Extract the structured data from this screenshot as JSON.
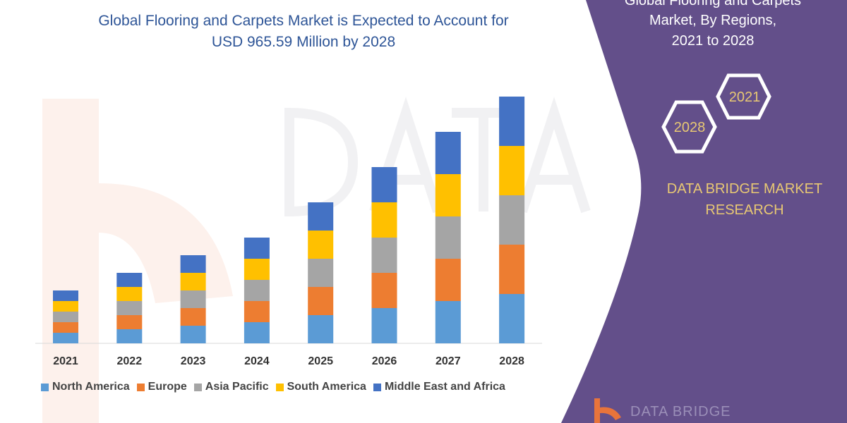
{
  "header": {
    "line1": "Global Flooring and Carpets Market is Expected to Account for",
    "line2": "USD 965.59 Million by 2028"
  },
  "panel": {
    "title_lines": [
      "Global Flooring and Carpets",
      "Market, By Regions,",
      "2021 to 2028"
    ],
    "hex_a": "2021",
    "hex_b": "2028",
    "brand_line1": "DATA BRIDGE MARKET",
    "brand_line2": "RESEARCH",
    "color": "#634f8a",
    "accent": "#e8c873"
  },
  "logo": {
    "text": "DATA BRIDGE"
  },
  "chart_data": {
    "type": "bar",
    "stacked": true,
    "title": "",
    "xlabel": "",
    "ylabel": "",
    "categories": [
      "2021",
      "2022",
      "2023",
      "2024",
      "2025",
      "2026",
      "2027",
      "2028"
    ],
    "ylim": [
      0,
      352
    ],
    "grid": false,
    "legend_position": "bottom",
    "series": [
      {
        "name": "North America",
        "color": "#5b9bd5",
        "values": [
          15,
          20,
          25,
          30,
          40,
          50,
          60,
          70
        ]
      },
      {
        "name": "Europe",
        "color": "#ed7d31",
        "values": [
          15,
          20,
          25,
          30,
          40,
          50,
          60,
          70
        ]
      },
      {
        "name": "Asia Pacific",
        "color": "#a5a5a5",
        "values": [
          15,
          20,
          25,
          30,
          40,
          50,
          60,
          70
        ]
      },
      {
        "name": "South America",
        "color": "#ffc000",
        "values": [
          15,
          20,
          25,
          30,
          40,
          50,
          60,
          70
        ]
      },
      {
        "name": "Middle East and Africa",
        "color": "#4472c4",
        "values": [
          15,
          20,
          25,
          30,
          40,
          50,
          60,
          70
        ]
      }
    ]
  }
}
